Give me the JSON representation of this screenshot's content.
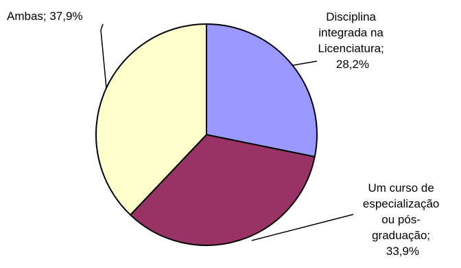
{
  "chart_data": {
    "type": "pie",
    "title": "",
    "slices": [
      {
        "label_lines": [
          "Disciplina",
          "integrada na",
          "Licenciatura;",
          "28,2%"
        ],
        "value": 28.2,
        "color": "#9999ff"
      },
      {
        "label_lines": [
          "Um curso de",
          "especialização",
          "ou pós-",
          "graduação;",
          "33,9%"
        ],
        "value": 33.9,
        "color": "#993366"
      },
      {
        "label_lines": [
          "Ambas; 37,9%"
        ],
        "value": 37.9,
        "color": "#ffffcc"
      }
    ],
    "start_angle_deg": 0,
    "direction": "clockwise",
    "border_color": "#000000",
    "legend": "none"
  }
}
